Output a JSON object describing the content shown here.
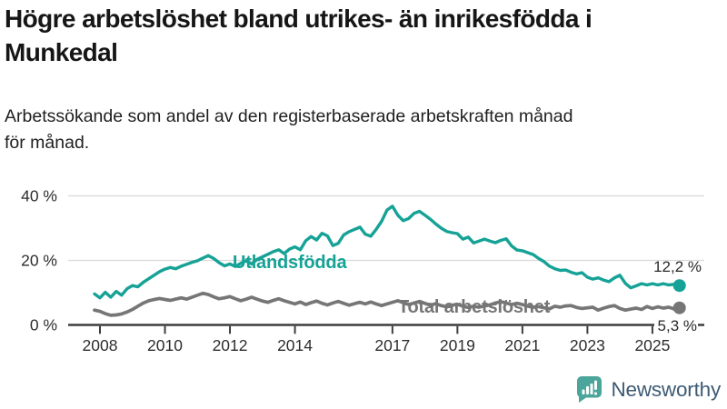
{
  "header": {
    "title_lines": [
      "Högre arbetslöshet bland utrikes- än inrikesfödda i",
      "Munkedal"
    ],
    "subtitle_lines": [
      "Arbetssökande som andel av den registerbaserade arbetskraften månad",
      "för månad."
    ]
  },
  "chart_data": {
    "type": "line",
    "title": "Högre arbetslöshet bland utrikes- än inrikesfödda i Munkedal",
    "subtitle": "Arbetssökande som andel av den registerbaserade arbetskraften månad för månad.",
    "xlabel": "",
    "ylabel": "",
    "ylim": [
      0,
      40
    ],
    "grid": "horizontal",
    "legend_position": "inline-labels",
    "x_start_year": 2007.833,
    "points_per_year": 6,
    "x_ticks": [
      {
        "value": 2008,
        "label": "2008"
      },
      {
        "value": 2010,
        "label": "2010"
      },
      {
        "value": 2012,
        "label": "2012"
      },
      {
        "value": 2014,
        "label": "2014"
      },
      {
        "value": 2017,
        "label": "2017"
      },
      {
        "value": 2019,
        "label": "2019"
      },
      {
        "value": 2021,
        "label": "2021"
      },
      {
        "value": 2023,
        "label": "2023"
      },
      {
        "value": 2025,
        "label": "2025"
      }
    ],
    "y_ticks": [
      {
        "value": 0,
        "label": "0 %"
      },
      {
        "value": 20,
        "label": "20 %"
      },
      {
        "value": 40,
        "label": "40 %"
      }
    ],
    "series": [
      {
        "name": "Utlandsfödda",
        "color": "#16a296",
        "end_label": "12,2 %",
        "end_value": 12.2,
        "values": [
          9.6,
          8.4,
          10.1,
          8.6,
          10.4,
          9.2,
          11.2,
          12.2,
          11.8,
          13.2,
          14.3,
          15.4,
          16.5,
          17.3,
          17.8,
          17.4,
          18.2,
          18.8,
          19.4,
          19.9,
          20.7,
          21.5,
          20.6,
          19.3,
          18.3,
          18.9,
          18.1,
          19.1,
          19.9,
          18.9,
          20.3,
          21.1,
          21.9,
          22.7,
          23.3,
          22.1,
          23.5,
          24.2,
          23.3,
          26.1,
          27.4,
          26.3,
          28.4,
          27.6,
          24.6,
          25.3,
          27.9,
          28.9,
          29.6,
          30.3,
          28.1,
          27.5,
          29.6,
          32.1,
          35.6,
          36.8,
          34.0,
          32.3,
          33.0,
          34.6,
          35.2,
          34.0,
          32.8,
          31.3,
          30.0,
          29.0,
          28.6,
          28.3,
          26.6,
          27.2,
          25.4,
          26.0,
          26.6,
          26.0,
          25.5,
          26.2,
          26.7,
          24.5,
          23.2,
          23.0,
          22.4,
          21.8,
          20.6,
          19.6,
          18.2,
          17.4,
          16.9,
          17.0,
          16.3,
          15.8,
          16.2,
          14.8,
          14.2,
          14.6,
          13.9,
          13.4,
          14.6,
          15.4,
          12.9,
          11.5,
          12.1,
          12.8,
          12.4,
          12.8,
          12.4,
          12.8,
          12.4,
          12.6,
          12.2
        ]
      },
      {
        "name": "Total arbetslöshet",
        "color": "#767676",
        "end_label": "5,3 %",
        "end_value": 5.3,
        "values": [
          4.6,
          4.2,
          3.5,
          3.0,
          3.1,
          3.4,
          4.0,
          4.8,
          5.8,
          6.8,
          7.5,
          7.9,
          8.2,
          7.9,
          7.6,
          8.0,
          8.4,
          8.0,
          8.6,
          9.2,
          9.8,
          9.4,
          8.7,
          8.1,
          8.4,
          8.8,
          8.1,
          7.5,
          8.0,
          8.6,
          8.0,
          7.4,
          7.0,
          7.6,
          8.1,
          7.5,
          7.0,
          6.5,
          7.1,
          6.3,
          6.9,
          7.4,
          6.7,
          6.2,
          6.8,
          7.3,
          6.7,
          6.1,
          6.6,
          7.0,
          6.5,
          7.1,
          6.5,
          6.0,
          6.5,
          7.0,
          7.5,
          6.9,
          6.3,
          6.8,
          7.3,
          6.7,
          6.1,
          6.6,
          6.0,
          5.6,
          6.1,
          6.4,
          5.8,
          5.4,
          5.8,
          5.5,
          5.9,
          6.2,
          6.8,
          7.2,
          6.8,
          6.3,
          6.7,
          6.3,
          5.8,
          5.5,
          5.7,
          5.3,
          5.0,
          5.8,
          5.5,
          5.9,
          6.0,
          5.4,
          5.1,
          5.3,
          5.5,
          4.6,
          5.2,
          5.7,
          6.0,
          5.1,
          4.6,
          4.9,
          5.2,
          4.8,
          5.7,
          5.1,
          5.6,
          5.2,
          5.5,
          5.0,
          5.3
        ]
      }
    ]
  },
  "footer": {
    "brand": "Newsworthy"
  },
  "colors": {
    "accent": "#16a296",
    "total_line": "#767676",
    "axis": "#3d3d3d",
    "grid": "#d9d9d9",
    "logo_icon": "#4ba59b",
    "logo_text": "#3d5a74"
  }
}
